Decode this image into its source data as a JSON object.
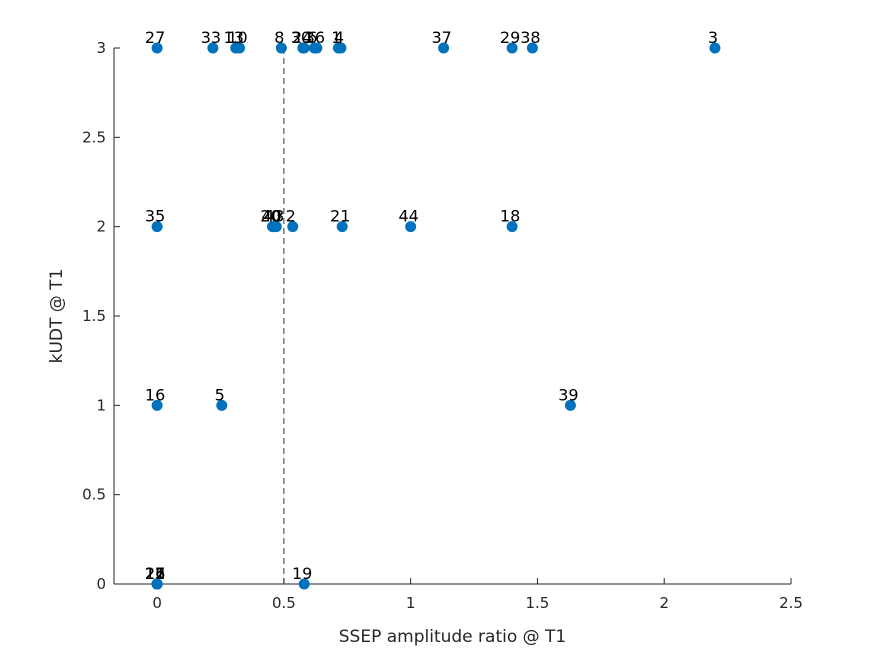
{
  "chart_data": {
    "type": "scatter",
    "xlabel": "SSEP amplitude ratio @ T1",
    "ylabel": "kUDT @ T1",
    "xlim": [
      -0.17,
      2.5
    ],
    "ylim": [
      0,
      3
    ],
    "xticks": [
      0,
      0.5,
      1,
      1.5,
      2,
      2.5
    ],
    "xtick_labels": [
      "0",
      "0.5",
      "1",
      "1.5",
      "2",
      "2.5"
    ],
    "yticks": [
      0,
      0.5,
      1,
      1.5,
      2,
      2.5,
      3
    ],
    "ytick_labels": [
      "0",
      "0.5",
      "1",
      "1.5",
      "2",
      "2.5",
      "3"
    ],
    "grid": false,
    "color": "#0072BD",
    "reference_line": {
      "x": 0.5,
      "style": "dashed"
    },
    "points": [
      {
        "x": 0,
        "y": 3,
        "label": "27"
      },
      {
        "x": 0.22,
        "y": 3,
        "label": "33"
      },
      {
        "x": 0.31,
        "y": 3,
        "label": "13"
      },
      {
        "x": 0.325,
        "y": 3,
        "label": "10"
      },
      {
        "x": 0.49,
        "y": 3,
        "label": "8"
      },
      {
        "x": 0.575,
        "y": 3,
        "label": "30"
      },
      {
        "x": 0.58,
        "y": 3,
        "label": "24"
      },
      {
        "x": 0.62,
        "y": 3,
        "label": "6"
      },
      {
        "x": 0.63,
        "y": 3,
        "label": "36"
      },
      {
        "x": 0.715,
        "y": 3,
        "label": "1"
      },
      {
        "x": 0.725,
        "y": 3,
        "label": "4"
      },
      {
        "x": 1.13,
        "y": 3,
        "label": "37"
      },
      {
        "x": 1.4,
        "y": 3,
        "label": "29"
      },
      {
        "x": 1.48,
        "y": 3,
        "label": "38"
      },
      {
        "x": 2.2,
        "y": 3,
        "label": "3"
      },
      {
        "x": 0,
        "y": 2,
        "label": "35"
      },
      {
        "x": 0.455,
        "y": 2,
        "label": "20"
      },
      {
        "x": 0.46,
        "y": 2,
        "label": "40"
      },
      {
        "x": 0.47,
        "y": 2,
        "label": "43"
      },
      {
        "x": 0.535,
        "y": 2,
        "label": "2"
      },
      {
        "x": 0.73,
        "y": 2,
        "label": "21"
      },
      {
        "x": 1.0,
        "y": 2,
        "label": "44"
      },
      {
        "x": 1.4,
        "y": 2,
        "label": "18"
      },
      {
        "x": 0,
        "y": 1,
        "label": "16"
      },
      {
        "x": 0.255,
        "y": 1,
        "label": "5"
      },
      {
        "x": 1.63,
        "y": 1,
        "label": "39"
      },
      {
        "x": 0,
        "y": 0,
        "label": "11"
      },
      {
        "x": 0,
        "y": 0,
        "label": "12"
      },
      {
        "x": 0,
        "y": 0,
        "label": "17"
      },
      {
        "x": 0,
        "y": 0,
        "label": "22"
      },
      {
        "x": 0,
        "y": 0,
        "label": "25"
      },
      {
        "x": 0,
        "y": 0,
        "label": "26"
      },
      {
        "x": 0.58,
        "y": 0,
        "label": "19"
      }
    ]
  }
}
